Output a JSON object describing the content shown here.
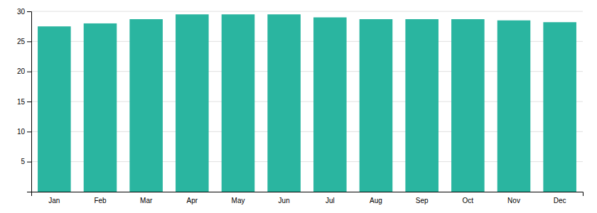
{
  "chart_data": {
    "type": "bar",
    "categories": [
      "Jan",
      "Feb",
      "Mar",
      "Apr",
      "May",
      "Jun",
      "Jul",
      "Aug",
      "Sep",
      "Oct",
      "Nov",
      "Dec"
    ],
    "values": [
      27.5,
      28.0,
      28.7,
      29.5,
      29.5,
      29.5,
      29.0,
      28.7,
      28.7,
      28.7,
      28.5,
      28.2
    ],
    "color": "#2ab5a0",
    "ylim": [
      0,
      30
    ],
    "yticks": [
      5,
      10,
      15,
      20,
      25,
      30
    ],
    "grid": true
  }
}
